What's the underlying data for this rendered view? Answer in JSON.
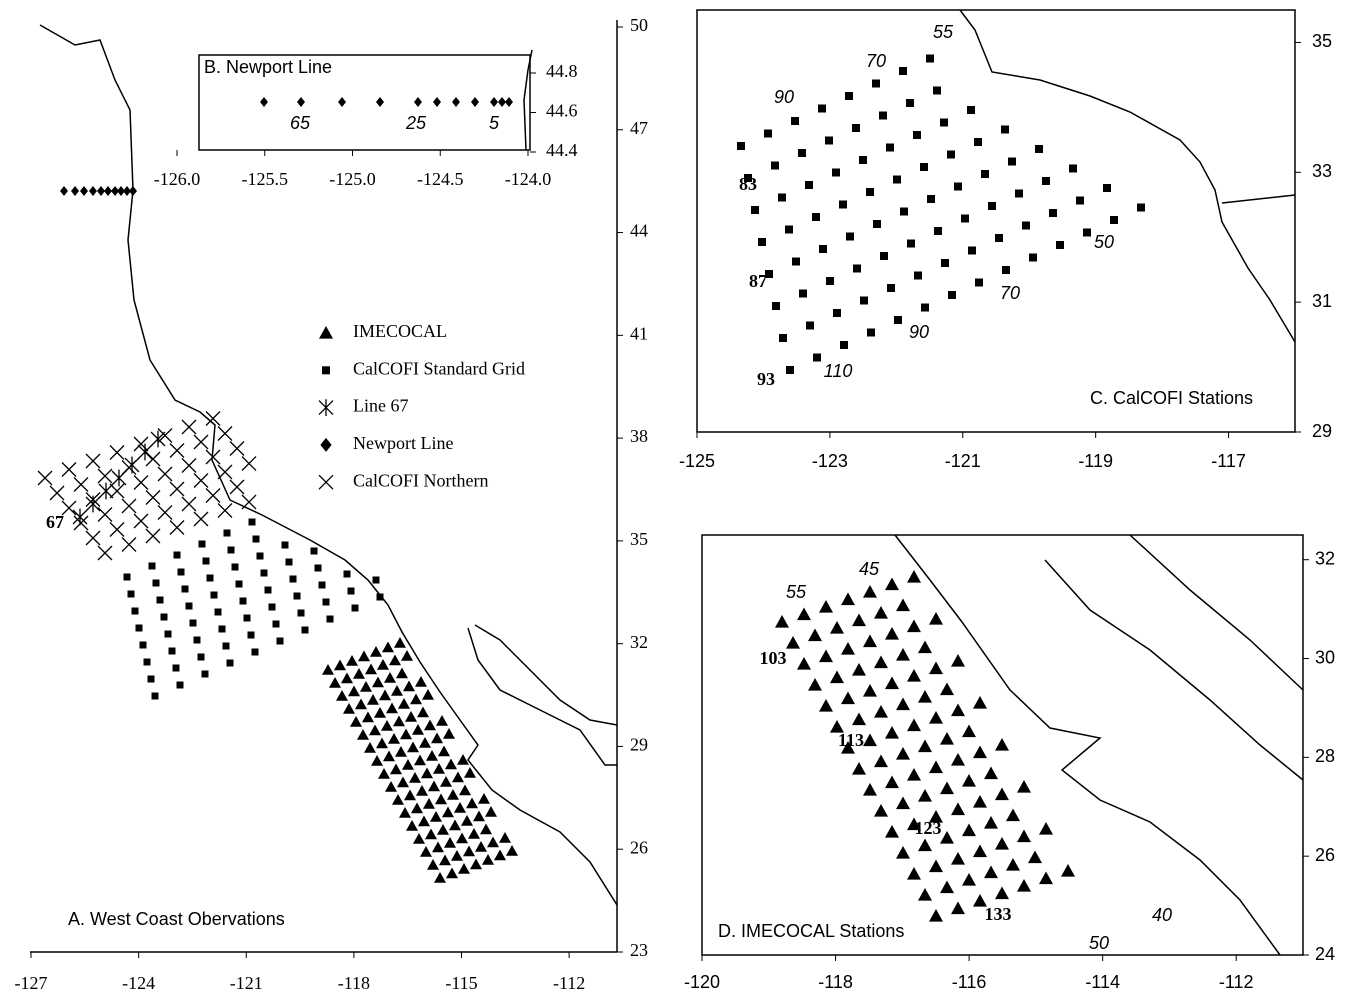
{
  "panels": [
    {
      "title": "A.  West Coast Obervations",
      "xlim": [
        -127,
        -111
      ],
      "xticks": [
        -127,
        -124,
        -121,
        -118,
        -115,
        -112
      ],
      "ylim": [
        23,
        50
      ],
      "yticks": [
        23,
        26,
        29,
        32,
        35,
        38,
        41,
        44,
        47,
        50
      ],
      "legend": [
        "IMECOCAL",
        "CalCOFI Standard Grid",
        "Line 67",
        "Newport Line",
        "CalCOFI Northern"
      ],
      "labels": [
        {
          "text": 67,
          "style": "bold"
        }
      ]
    },
    {
      "title": "B.  Newport Line",
      "xlim": [
        -126,
        -124
      ],
      "xticks": [
        {
          "value": -126,
          "label": "-126.0"
        },
        -125.5,
        {
          "value": -125,
          "label": "-125.0"
        },
        -124.5,
        {
          "value": -124,
          "label": "-124.0"
        }
      ],
      "ylim": [
        44.4,
        44.8
      ],
      "yticks": [
        44.4,
        44.6,
        44.8
      ],
      "labels": [
        {
          "text": 65,
          "style": "italic"
        },
        {
          "text": 25,
          "style": "italic"
        },
        {
          "text": 5,
          "style": "italic"
        }
      ]
    },
    {
      "title": "C.  CalCOFI Stations",
      "xlim": [
        -125,
        -116
      ],
      "xticks": [
        -125,
        -123,
        -121,
        -119,
        -117
      ],
      "ylim": [
        29,
        35.5
      ],
      "yticks": [
        29,
        31,
        33,
        35
      ],
      "labels": [
        {
          "text": 55,
          "style": "italic"
        },
        {
          "text": 70,
          "style": "italic"
        },
        {
          "text": 90,
          "style": "italic"
        },
        {
          "text": 83,
          "style": "bold"
        },
        {
          "text": 87,
          "style": "bold"
        },
        {
          "text": 93,
          "style": "bold"
        },
        {
          "text": 110,
          "style": "italic"
        },
        {
          "text": 70,
          "style": "italic"
        },
        {
          "text": 90,
          "style": "italic"
        },
        {
          "text": 50,
          "style": "italic"
        }
      ]
    },
    {
      "title": "D.  IMECOCAL Stations",
      "xlim": [
        -120,
        -111
      ],
      "xticks": [
        -120,
        -118,
        -116,
        -114,
        -112
      ],
      "ylim": [
        24,
        32.5
      ],
      "yticks": [
        24,
        26,
        28,
        30,
        32
      ],
      "labels": [
        {
          "text": 55,
          "style": "italic"
        },
        {
          "text": 45,
          "style": "italic"
        },
        {
          "text": 103,
          "style": "bold"
        },
        {
          "text": 113,
          "style": "bold"
        },
        {
          "text": 123,
          "style": "bold"
        },
        {
          "text": 133,
          "style": "bold"
        },
        {
          "text": 40,
          "style": "italic"
        },
        {
          "text": 50,
          "style": "italic"
        }
      ]
    }
  ]
}
